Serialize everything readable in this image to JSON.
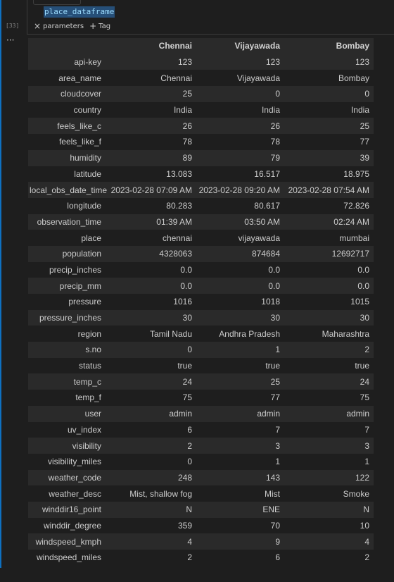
{
  "cell": {
    "code": "place_dataframe",
    "execution_count": "[33]",
    "tags": [
      {
        "icon": "close-icon",
        "label": "parameters"
      },
      {
        "icon": "plus-icon",
        "label": "Tag"
      }
    ]
  },
  "output": {
    "more_icon": "ellipsis-icon",
    "table": {
      "columns": [
        "Chennai",
        "Vijayawada",
        "Bombay"
      ],
      "rows": [
        {
          "index": "api-key",
          "values": [
            "123",
            "123",
            "123"
          ]
        },
        {
          "index": "area_name",
          "values": [
            "Chennai",
            "Vijayawada",
            "Bombay"
          ]
        },
        {
          "index": "cloudcover",
          "values": [
            "25",
            "0",
            "0"
          ]
        },
        {
          "index": "country",
          "values": [
            "India",
            "India",
            "India"
          ]
        },
        {
          "index": "feels_like_c",
          "values": [
            "26",
            "26",
            "25"
          ]
        },
        {
          "index": "feels_like_f",
          "values": [
            "78",
            "78",
            "77"
          ]
        },
        {
          "index": "humidity",
          "values": [
            "89",
            "79",
            "39"
          ]
        },
        {
          "index": "latitude",
          "values": [
            "13.083",
            "16.517",
            "18.975"
          ]
        },
        {
          "index": "local_obs_date_time",
          "values": [
            "2023-02-28 07:09 AM",
            "2023-02-28 09:20 AM",
            "2023-02-28 07:54 AM"
          ]
        },
        {
          "index": "longitude",
          "values": [
            "80.283",
            "80.617",
            "72.826"
          ]
        },
        {
          "index": "observation_time",
          "values": [
            "01:39 AM",
            "03:50 AM",
            "02:24 AM"
          ]
        },
        {
          "index": "place",
          "values": [
            "chennai",
            "vijayawada",
            "mumbai"
          ]
        },
        {
          "index": "population",
          "values": [
            "4328063",
            "874684",
            "12692717"
          ]
        },
        {
          "index": "precip_inches",
          "values": [
            "0.0",
            "0.0",
            "0.0"
          ]
        },
        {
          "index": "precip_mm",
          "values": [
            "0.0",
            "0.0",
            "0.0"
          ]
        },
        {
          "index": "pressure",
          "values": [
            "1016",
            "1018",
            "1015"
          ]
        },
        {
          "index": "pressure_inches",
          "values": [
            "30",
            "30",
            "30"
          ]
        },
        {
          "index": "region",
          "values": [
            "Tamil Nadu",
            "Andhra Pradesh",
            "Maharashtra"
          ]
        },
        {
          "index": "s.no",
          "values": [
            "0",
            "1",
            "2"
          ]
        },
        {
          "index": "status",
          "values": [
            "true",
            "true",
            "true"
          ]
        },
        {
          "index": "temp_c",
          "values": [
            "24",
            "25",
            "24"
          ]
        },
        {
          "index": "temp_f",
          "values": [
            "75",
            "77",
            "75"
          ]
        },
        {
          "index": "user",
          "values": [
            "admin",
            "admin",
            "admin"
          ]
        },
        {
          "index": "uv_index",
          "values": [
            "6",
            "7",
            "7"
          ]
        },
        {
          "index": "visibility",
          "values": [
            "2",
            "3",
            "3"
          ]
        },
        {
          "index": "visibility_miles",
          "values": [
            "0",
            "1",
            "1"
          ]
        },
        {
          "index": "weather_code",
          "values": [
            "248",
            "143",
            "122"
          ]
        },
        {
          "index": "weather_desc",
          "values": [
            "Mist, shallow fog",
            "Mist",
            "Smoke"
          ]
        },
        {
          "index": "winddir16_point",
          "values": [
            "N",
            "ENE",
            "N"
          ]
        },
        {
          "index": "winddir_degree",
          "values": [
            "359",
            "70",
            "10"
          ]
        },
        {
          "index": "windspeed_kmph",
          "values": [
            "4",
            "9",
            "4"
          ]
        },
        {
          "index": "windspeed_miles",
          "values": [
            "2",
            "6",
            "2"
          ]
        }
      ]
    }
  },
  "colors": {
    "background": "#1e1e1e",
    "row_alt": "#2a2a2a",
    "accent_bar": "#0e70c0",
    "selection": "#264f78",
    "code_text": "#9cdcfe"
  }
}
